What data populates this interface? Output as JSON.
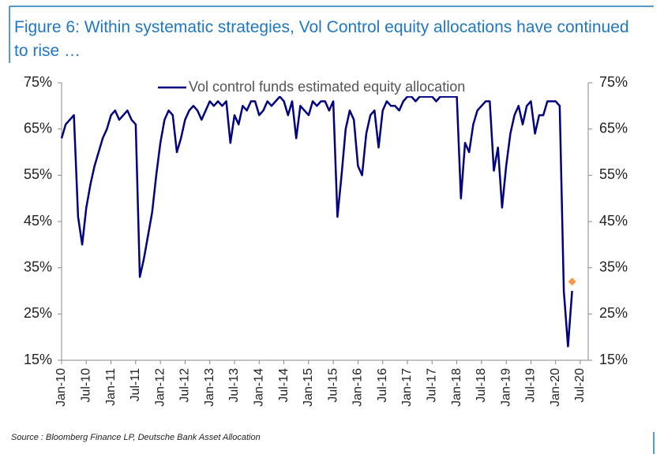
{
  "chart_data": {
    "type": "line",
    "title": "Figure 6: Within systematic strategies, Vol Control equity allocations have continued to rise …",
    "source": "Source : Bloomberg Finance LP, Deutsche Bank Asset Allocation",
    "categories": [
      "Jan-10",
      null,
      null,
      null,
      null,
      null,
      "Jul-10",
      null,
      null,
      null,
      null,
      null,
      "Jan-11",
      null,
      null,
      null,
      null,
      null,
      "Jul-11",
      null,
      null,
      null,
      null,
      null,
      "Jan-12",
      null,
      null,
      null,
      null,
      null,
      "Jul-12",
      null,
      null,
      null,
      null,
      null,
      "Jan-13",
      null,
      null,
      null,
      null,
      null,
      "Jul-13",
      null,
      null,
      null,
      null,
      null,
      "Jan-14",
      null,
      null,
      null,
      null,
      null,
      "Jul-14",
      null,
      null,
      null,
      null,
      null,
      "Jan-15",
      null,
      null,
      null,
      null,
      null,
      "Jul-15",
      null,
      null,
      null,
      null,
      null,
      "Jan-16",
      null,
      null,
      null,
      null,
      null,
      "Jul-16",
      null,
      null,
      null,
      null,
      null,
      "Jan-17",
      null,
      null,
      null,
      null,
      null,
      "Jul-17",
      null,
      null,
      null,
      null,
      null,
      "Jan-18",
      null,
      null,
      null,
      null,
      null,
      "Jul-18",
      null,
      null,
      null,
      null,
      null,
      "Jan-19",
      null,
      null,
      null,
      null,
      null,
      "Jul-19",
      null,
      null,
      null,
      null,
      null,
      "Jan-20",
      null,
      null,
      null,
      null,
      null,
      "Jul-20"
    ],
    "series": [
      {
        "name": "Vol control funds estimated equity allocation",
        "color": "#000080",
        "values": [
          63,
          66,
          67,
          68,
          46,
          40,
          48,
          53,
          57,
          60,
          63,
          65,
          68,
          69,
          67,
          68,
          69,
          67,
          66,
          33,
          37,
          42,
          47,
          55,
          62,
          67,
          69,
          68,
          60,
          63,
          67,
          69,
          70,
          69,
          67,
          69,
          71,
          70,
          71,
          70,
          71,
          62,
          68,
          66,
          70,
          69,
          71,
          71,
          68,
          69,
          71,
          70,
          71,
          72,
          71,
          68,
          71,
          63,
          70,
          69,
          68,
          71,
          70,
          71,
          71,
          69,
          71,
          46,
          55,
          65,
          69,
          67,
          57,
          55,
          64,
          68,
          69,
          61,
          69,
          71,
          70,
          70,
          69,
          71,
          72,
          72,
          71,
          72,
          72,
          72,
          72,
          71,
          72,
          72,
          72,
          72,
          72,
          50,
          62,
          60,
          66,
          69,
          70,
          71,
          71,
          56,
          61,
          48,
          57,
          64,
          68,
          70,
          66,
          70,
          71,
          64,
          68,
          68,
          71,
          71,
          71,
          70,
          30,
          18,
          30,
          null,
          null
        ]
      }
    ],
    "latest_point": {
      "value": 32,
      "color": "#f79646"
    },
    "ylim": [
      15,
      75
    ],
    "yticks": [
      {
        "value": 15,
        "label": "15%"
      },
      {
        "value": 25,
        "label": "25%"
      },
      {
        "value": 35,
        "label": "35%"
      },
      {
        "value": 45,
        "label": "45%"
      },
      {
        "value": 55,
        "label": "55%"
      },
      {
        "value": 65,
        "label": "65%"
      },
      {
        "value": 75,
        "label": "75%"
      }
    ],
    "y2lim": [
      15,
      75
    ],
    "y2ticks": [
      {
        "value": 15,
        "label": "15%"
      },
      {
        "value": 25,
        "label": "25%"
      },
      {
        "value": 35,
        "label": "35%"
      },
      {
        "value": 45,
        "label": "45%"
      },
      {
        "value": 55,
        "label": "55%"
      },
      {
        "value": 65,
        "label": "65%"
      },
      {
        "value": 75,
        "label": "75%"
      }
    ],
    "grid": false,
    "legend": "top"
  }
}
